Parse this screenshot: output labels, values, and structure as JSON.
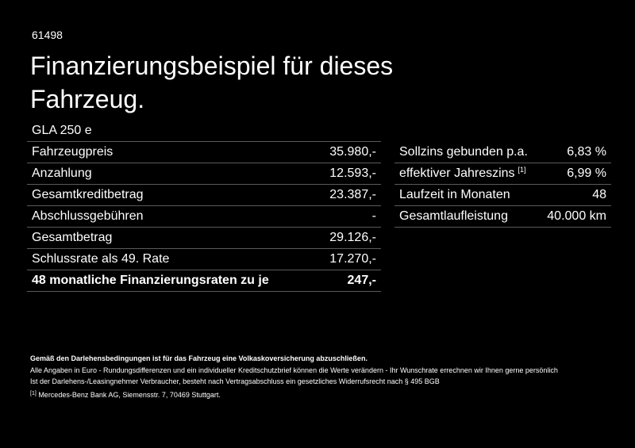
{
  "header": {
    "id": "61498",
    "title_lines": [
      "Finanzierungsbeispiel für dieses",
      "Fahrzeug."
    ],
    "model": "GLA 250 e"
  },
  "left_table": {
    "rows": [
      [
        "Fahrzeugpreis",
        "35.980,-"
      ],
      [
        "Anzahlung",
        "12.593,-"
      ],
      [
        "Gesamtkreditbetrag",
        "23.387,-"
      ],
      [
        "Abschlussgebühren",
        "-"
      ],
      [
        "Gesamtbetrag",
        "29.126,-"
      ],
      [
        "Schlussrate als 49. Rate",
        "17.270,-"
      ],
      [
        "48 monatliche Finanzierungsraten zu je",
        "247,-"
      ]
    ]
  },
  "right_table": {
    "rows": [
      [
        "Sollzins gebunden p.a.",
        "6,83 %"
      ],
      [
        "effektiver Jahreszins",
        "6,99 %"
      ],
      [
        "Laufzeit in Monaten",
        "48"
      ],
      [
        "Gesamtlaufleistung",
        "40.000 km"
      ]
    ],
    "footnote_mark": "[1]"
  },
  "footer": {
    "bold_note": "Gemäß den Darlehensbedingungen ist für das Fahrzeug eine Volkaskoversicherung abzuschließen.",
    "lines": [
      "Alle Angaben in Euro - Rundungsdifferenzen und ein individueller Kreditschutzbrief können die Werte verändern - Ihr Wunschrate errechnen wir Ihnen gerne persönlich",
      "Ist der Darlehens-/Leasingnehmer Verbraucher, besteht nach Vertragsabschluss ein gesetzliches Widerrufsrecht nach § 495 BGB"
    ],
    "footnote_mark": "[1]",
    "footnote": "Mercedes-Benz Bank AG, Siemensstr. 7, 70469 Stuttgart."
  }
}
